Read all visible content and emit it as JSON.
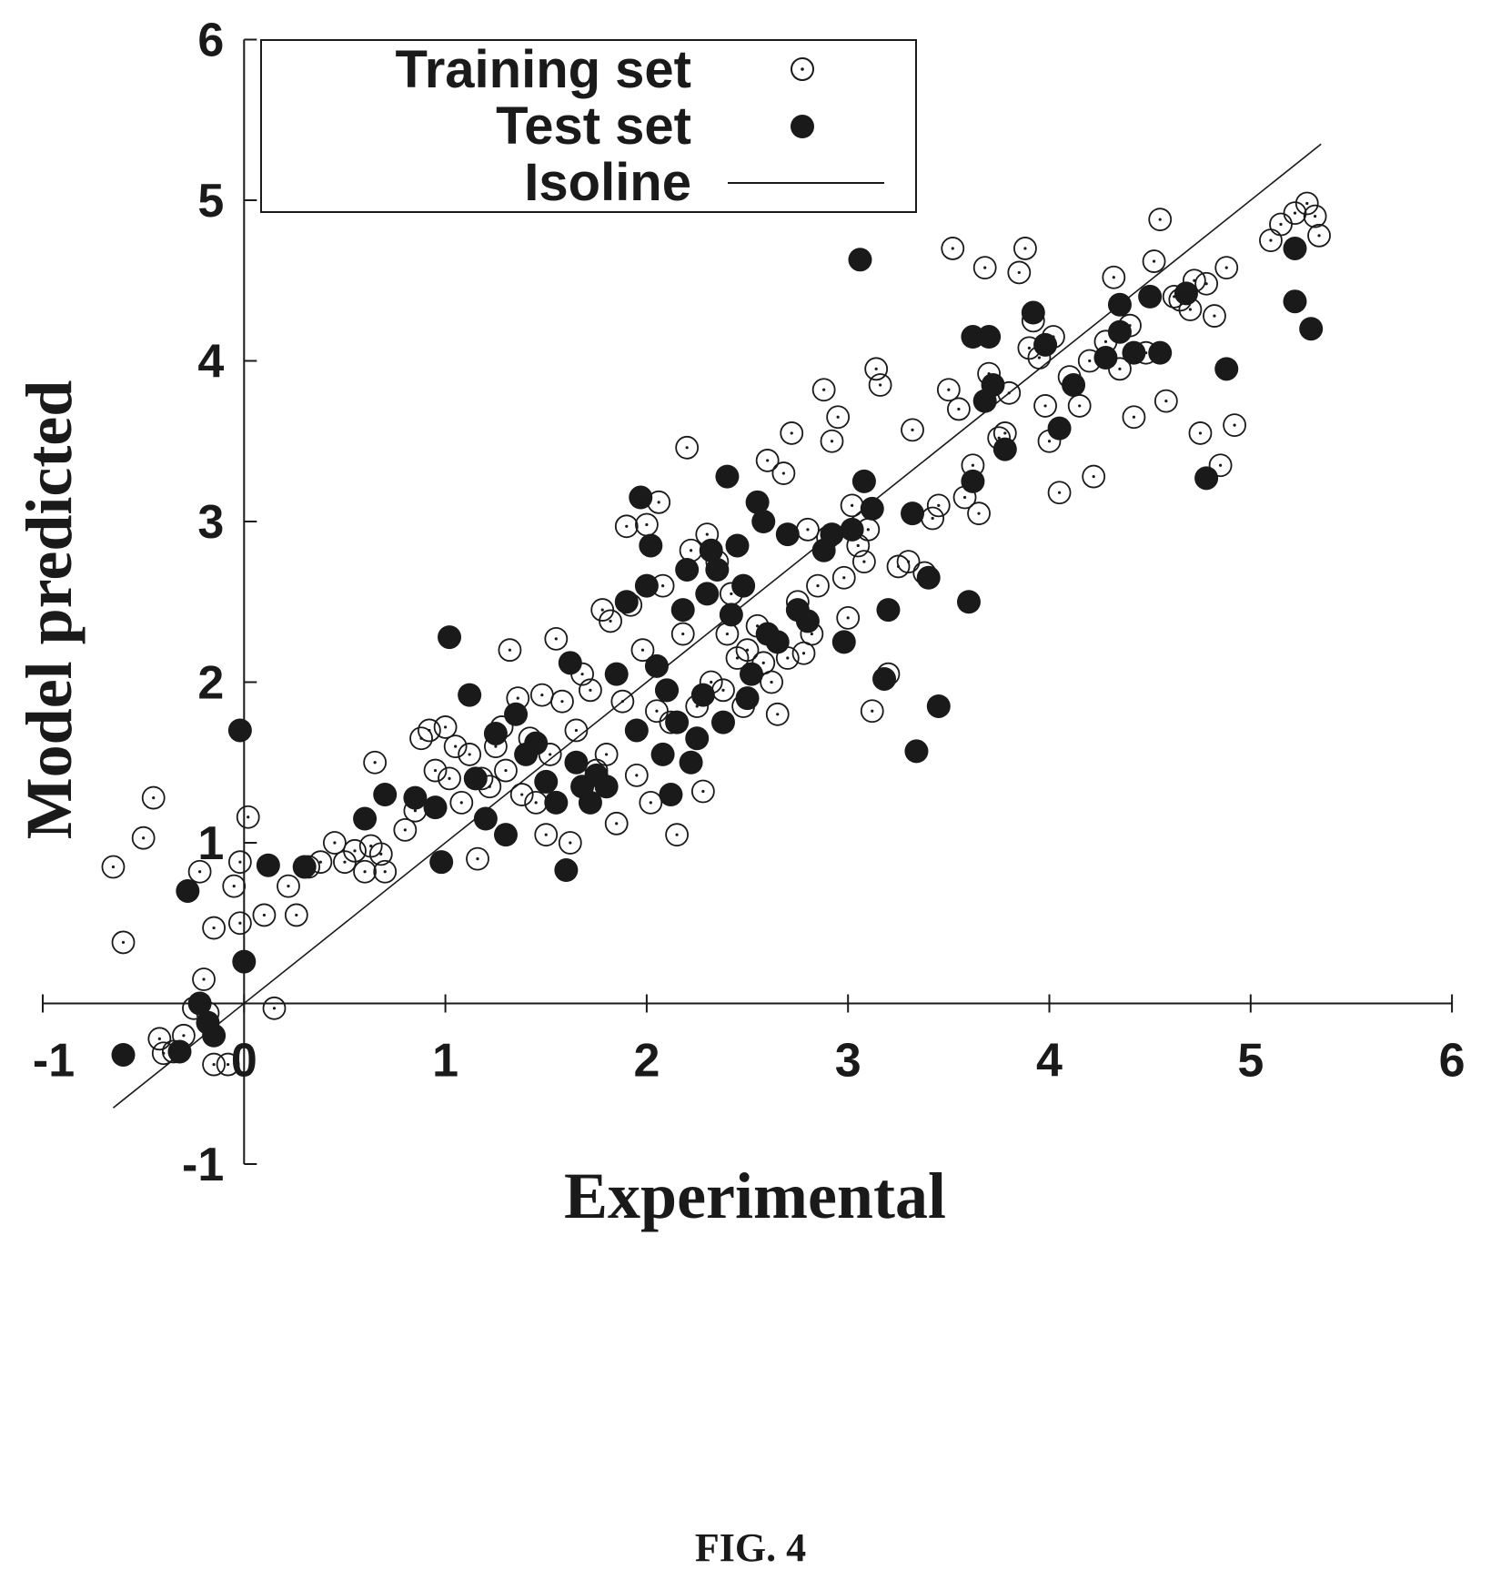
{
  "figure_label": "FIG. 4",
  "colors": {
    "ink": "#1a1a1a",
    "background": "#ffffff"
  },
  "chart_data": {
    "type": "scatter",
    "xlabel": "Experimental",
    "ylabel": "Model predicted",
    "xlim": [
      -1,
      6
    ],
    "ylim": [
      -1,
      6
    ],
    "xticks": [
      "-1",
      "0",
      "1",
      "2",
      "3",
      "4",
      "5",
      "6"
    ],
    "yticks": [
      "-1",
      "1",
      "2",
      "3",
      "4",
      "5",
      "6"
    ],
    "grid": false,
    "legend_position": "top-center",
    "legend": [
      "Training set",
      "Test set",
      "Isoline"
    ],
    "isoline": {
      "x": [
        -0.65,
        5.35
      ],
      "y": [
        -0.65,
        5.35
      ]
    },
    "series": [
      {
        "name": "Training set",
        "marker": "open-circle",
        "points": [
          [
            -0.65,
            0.85
          ],
          [
            -0.6,
            0.38
          ],
          [
            -0.5,
            1.03
          ],
          [
            -0.45,
            1.28
          ],
          [
            -0.42,
            -0.22
          ],
          [
            -0.4,
            -0.31
          ],
          [
            -0.35,
            -0.3
          ],
          [
            -0.3,
            -0.2
          ],
          [
            -0.25,
            -0.03
          ],
          [
            -0.22,
            0.82
          ],
          [
            -0.2,
            0.15
          ],
          [
            -0.18,
            -0.06
          ],
          [
            -0.15,
            0.47
          ],
          [
            -0.15,
            -0.38
          ],
          [
            -0.08,
            -0.38
          ],
          [
            -0.05,
            0.73
          ],
          [
            -0.02,
            0.5
          ],
          [
            -0.02,
            0.88
          ],
          [
            0.02,
            1.16
          ],
          [
            0.1,
            0.55
          ],
          [
            0.15,
            -0.03
          ],
          [
            0.22,
            0.73
          ],
          [
            0.26,
            0.55
          ],
          [
            0.32,
            0.85
          ],
          [
            0.38,
            0.88
          ],
          [
            0.45,
            1.0
          ],
          [
            0.5,
            0.88
          ],
          [
            0.55,
            0.95
          ],
          [
            0.6,
            0.82
          ],
          [
            0.63,
            0.98
          ],
          [
            0.65,
            1.5
          ],
          [
            0.68,
            0.93
          ],
          [
            0.7,
            0.82
          ],
          [
            0.8,
            1.08
          ],
          [
            0.85,
            1.2
          ],
          [
            0.88,
            1.65
          ],
          [
            0.92,
            1.7
          ],
          [
            0.95,
            1.45
          ],
          [
            1.0,
            1.72
          ],
          [
            1.02,
            1.4
          ],
          [
            1.05,
            1.6
          ],
          [
            1.08,
            1.25
          ],
          [
            1.12,
            1.55
          ],
          [
            1.16,
            0.9
          ],
          [
            1.18,
            1.4
          ],
          [
            1.22,
            1.35
          ],
          [
            1.25,
            1.6
          ],
          [
            1.28,
            1.72
          ],
          [
            1.3,
            1.45
          ],
          [
            1.32,
            2.2
          ],
          [
            1.36,
            1.9
          ],
          [
            1.38,
            1.3
          ],
          [
            1.42,
            1.65
          ],
          [
            1.45,
            1.25
          ],
          [
            1.48,
            1.92
          ],
          [
            1.5,
            1.05
          ],
          [
            1.52,
            1.55
          ],
          [
            1.55,
            2.27
          ],
          [
            1.58,
            1.88
          ],
          [
            1.62,
            1.0
          ],
          [
            1.65,
            1.7
          ],
          [
            1.68,
            2.05
          ],
          [
            1.72,
            1.95
          ],
          [
            1.75,
            1.45
          ],
          [
            1.78,
            2.45
          ],
          [
            1.8,
            1.55
          ],
          [
            1.82,
            2.38
          ],
          [
            1.85,
            1.12
          ],
          [
            1.88,
            1.88
          ],
          [
            1.9,
            2.97
          ],
          [
            1.92,
            2.48
          ],
          [
            1.95,
            1.42
          ],
          [
            1.98,
            2.2
          ],
          [
            2.0,
            2.98
          ],
          [
            2.02,
            1.25
          ],
          [
            2.05,
            1.82
          ],
          [
            2.06,
            3.12
          ],
          [
            2.08,
            2.6
          ],
          [
            2.1,
            1.95
          ],
          [
            2.12,
            1.75
          ],
          [
            2.15,
            1.05
          ],
          [
            2.18,
            2.3
          ],
          [
            2.2,
            3.46
          ],
          [
            2.22,
            2.82
          ],
          [
            2.25,
            1.85
          ],
          [
            2.28,
            1.32
          ],
          [
            2.3,
            2.92
          ],
          [
            2.32,
            2.0
          ],
          [
            2.35,
            2.75
          ],
          [
            2.38,
            1.95
          ],
          [
            2.4,
            2.3
          ],
          [
            2.42,
            2.55
          ],
          [
            2.45,
            2.15
          ],
          [
            2.48,
            1.85
          ],
          [
            2.5,
            2.2
          ],
          [
            2.55,
            2.35
          ],
          [
            2.58,
            2.12
          ],
          [
            2.6,
            3.38
          ],
          [
            2.62,
            2.0
          ],
          [
            2.65,
            1.8
          ],
          [
            2.68,
            3.3
          ],
          [
            2.7,
            2.15
          ],
          [
            2.72,
            3.55
          ],
          [
            2.75,
            2.5
          ],
          [
            2.78,
            2.18
          ],
          [
            2.8,
            2.95
          ],
          [
            2.82,
            2.3
          ],
          [
            2.85,
            2.6
          ],
          [
            2.88,
            3.82
          ],
          [
            2.9,
            2.9
          ],
          [
            2.92,
            3.5
          ],
          [
            2.95,
            3.65
          ],
          [
            2.98,
            2.65
          ],
          [
            3.0,
            2.4
          ],
          [
            3.02,
            3.1
          ],
          [
            3.05,
            2.85
          ],
          [
            3.08,
            2.75
          ],
          [
            3.1,
            2.95
          ],
          [
            3.12,
            1.82
          ],
          [
            3.14,
            3.95
          ],
          [
            3.16,
            3.85
          ],
          [
            3.2,
            2.05
          ],
          [
            3.25,
            2.72
          ],
          [
            3.3,
            2.75
          ],
          [
            3.32,
            3.57
          ],
          [
            3.38,
            2.68
          ],
          [
            3.42,
            3.02
          ],
          [
            3.45,
            3.1
          ],
          [
            3.5,
            3.82
          ],
          [
            3.52,
            4.7
          ],
          [
            3.55,
            3.7
          ],
          [
            3.58,
            3.15
          ],
          [
            3.62,
            3.35
          ],
          [
            3.65,
            3.05
          ],
          [
            3.68,
            4.58
          ],
          [
            3.7,
            3.92
          ],
          [
            3.75,
            3.52
          ],
          [
            3.78,
            3.55
          ],
          [
            3.8,
            3.8
          ],
          [
            3.85,
            4.55
          ],
          [
            3.88,
            4.7
          ],
          [
            3.9,
            4.08
          ],
          [
            3.92,
            4.25
          ],
          [
            3.95,
            4.02
          ],
          [
            3.98,
            3.72
          ],
          [
            4.0,
            3.5
          ],
          [
            4.02,
            4.15
          ],
          [
            4.05,
            3.18
          ],
          [
            4.1,
            3.9
          ],
          [
            4.15,
            3.72
          ],
          [
            4.2,
            4.0
          ],
          [
            4.22,
            3.28
          ],
          [
            4.28,
            4.12
          ],
          [
            4.32,
            4.52
          ],
          [
            4.35,
            3.95
          ],
          [
            4.4,
            4.22
          ],
          [
            4.42,
            3.65
          ],
          [
            4.48,
            4.05
          ],
          [
            4.52,
            4.62
          ],
          [
            4.55,
            4.88
          ],
          [
            4.58,
            3.75
          ],
          [
            4.62,
            4.4
          ],
          [
            4.65,
            4.38
          ],
          [
            4.7,
            4.32
          ],
          [
            4.72,
            4.5
          ],
          [
            4.75,
            3.55
          ],
          [
            4.78,
            4.48
          ],
          [
            4.82,
            4.28
          ],
          [
            4.85,
            3.35
          ],
          [
            4.88,
            4.58
          ],
          [
            4.92,
            3.6
          ],
          [
            5.1,
            4.75
          ],
          [
            5.15,
            4.85
          ],
          [
            5.22,
            4.92
          ],
          [
            5.28,
            4.98
          ],
          [
            5.32,
            4.9
          ],
          [
            5.34,
            4.78
          ]
        ]
      },
      {
        "name": "Test set",
        "marker": "filled-circle",
        "points": [
          [
            -0.6,
            -0.32
          ],
          [
            -0.32,
            -0.3
          ],
          [
            -0.28,
            0.7
          ],
          [
            -0.22,
            0.0
          ],
          [
            -0.18,
            -0.12
          ],
          [
            -0.15,
            -0.2
          ],
          [
            -0.02,
            1.7
          ],
          [
            0.0,
            0.26
          ],
          [
            0.12,
            0.86
          ],
          [
            0.3,
            0.85
          ],
          [
            0.6,
            1.15
          ],
          [
            0.7,
            1.3
          ],
          [
            0.85,
            1.28
          ],
          [
            0.95,
            1.22
          ],
          [
            0.98,
            0.88
          ],
          [
            1.02,
            2.28
          ],
          [
            1.12,
            1.92
          ],
          [
            1.15,
            1.4
          ],
          [
            1.2,
            1.15
          ],
          [
            1.25,
            1.68
          ],
          [
            1.3,
            1.05
          ],
          [
            1.35,
            1.8
          ],
          [
            1.4,
            1.55
          ],
          [
            1.45,
            1.62
          ],
          [
            1.5,
            1.38
          ],
          [
            1.55,
            1.25
          ],
          [
            1.6,
            0.83
          ],
          [
            1.62,
            2.12
          ],
          [
            1.65,
            1.5
          ],
          [
            1.68,
            1.35
          ],
          [
            1.72,
            1.25
          ],
          [
            1.75,
            1.42
          ],
          [
            1.8,
            1.35
          ],
          [
            1.85,
            2.05
          ],
          [
            1.9,
            2.5
          ],
          [
            1.95,
            1.7
          ],
          [
            1.97,
            3.15
          ],
          [
            2.0,
            2.6
          ],
          [
            2.02,
            2.85
          ],
          [
            2.05,
            2.1
          ],
          [
            2.08,
            1.55
          ],
          [
            2.1,
            1.95
          ],
          [
            2.12,
            1.3
          ],
          [
            2.15,
            1.75
          ],
          [
            2.18,
            2.45
          ],
          [
            2.2,
            2.7
          ],
          [
            2.22,
            1.5
          ],
          [
            2.25,
            1.65
          ],
          [
            2.28,
            1.92
          ],
          [
            2.3,
            2.55
          ],
          [
            2.32,
            2.82
          ],
          [
            2.35,
            2.7
          ],
          [
            2.38,
            1.75
          ],
          [
            2.4,
            3.28
          ],
          [
            2.42,
            2.42
          ],
          [
            2.45,
            2.85
          ],
          [
            2.48,
            2.6
          ],
          [
            2.5,
            1.9
          ],
          [
            2.52,
            2.05
          ],
          [
            2.55,
            3.12
          ],
          [
            2.58,
            3.0
          ],
          [
            2.6,
            2.3
          ],
          [
            2.65,
            2.25
          ],
          [
            2.7,
            2.92
          ],
          [
            2.75,
            2.45
          ],
          [
            2.8,
            2.38
          ],
          [
            2.88,
            2.82
          ],
          [
            2.92,
            2.92
          ],
          [
            2.98,
            2.25
          ],
          [
            3.02,
            2.95
          ],
          [
            3.06,
            4.63
          ],
          [
            3.08,
            3.25
          ],
          [
            3.12,
            3.08
          ],
          [
            3.18,
            2.02
          ],
          [
            3.2,
            2.45
          ],
          [
            3.32,
            3.05
          ],
          [
            3.34,
            1.57
          ],
          [
            3.4,
            2.65
          ],
          [
            3.45,
            1.85
          ],
          [
            3.6,
            2.5
          ],
          [
            3.62,
            4.15
          ],
          [
            3.62,
            3.25
          ],
          [
            3.68,
            3.75
          ],
          [
            3.7,
            4.15
          ],
          [
            3.72,
            3.85
          ],
          [
            3.78,
            3.45
          ],
          [
            3.92,
            4.3
          ],
          [
            3.98,
            4.1
          ],
          [
            4.05,
            3.58
          ],
          [
            4.12,
            3.85
          ],
          [
            4.28,
            4.02
          ],
          [
            4.35,
            4.35
          ],
          [
            4.35,
            4.18
          ],
          [
            4.42,
            4.05
          ],
          [
            4.5,
            4.4
          ],
          [
            4.55,
            4.05
          ],
          [
            4.68,
            4.42
          ],
          [
            4.78,
            3.27
          ],
          [
            4.88,
            3.95
          ],
          [
            5.22,
            4.7
          ],
          [
            5.22,
            4.37
          ],
          [
            5.3,
            4.2
          ]
        ]
      }
    ]
  }
}
